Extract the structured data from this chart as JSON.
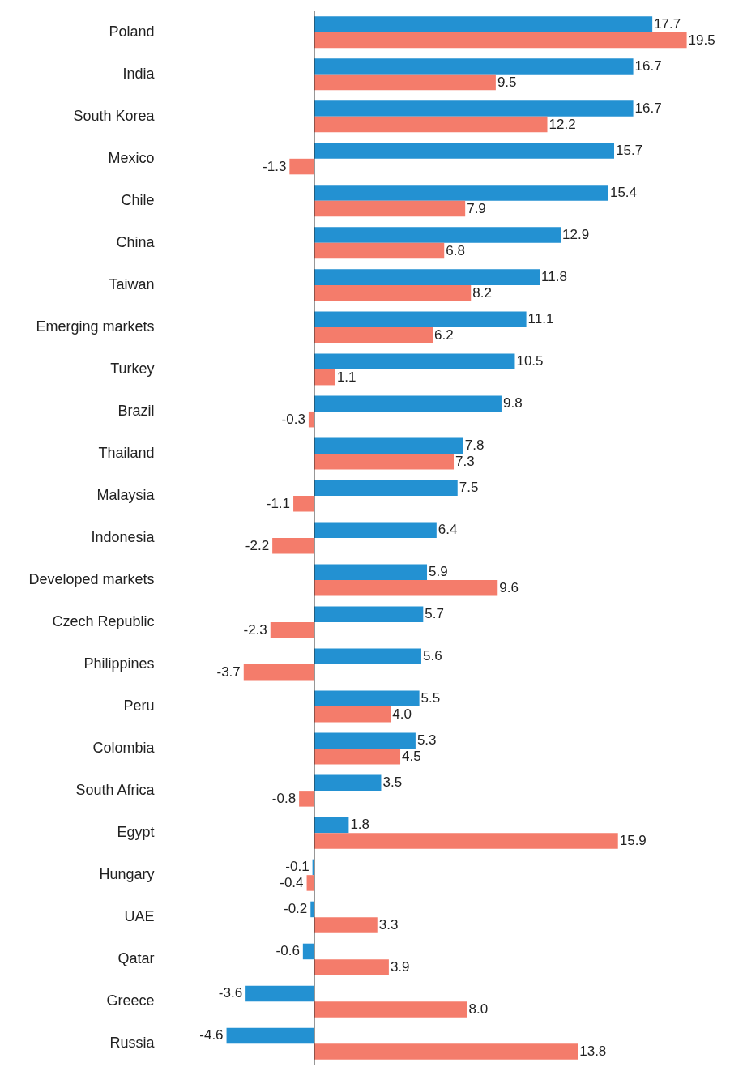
{
  "chart_data": {
    "type": "bar",
    "orientation": "horizontal",
    "categories": [
      "Poland",
      "India",
      "South Korea",
      "Mexico",
      "Chile",
      "China",
      "Taiwan",
      "Emerging markets",
      "Turkey",
      "Brazil",
      "Thailand",
      "Malaysia",
      "Indonesia",
      "Developed markets",
      "Czech Republic",
      "Philippines",
      "Peru",
      "Colombia",
      "South Africa",
      "Egypt",
      "Hungary",
      "UAE",
      "Qatar",
      "Greece",
      "Russia"
    ],
    "series": [
      {
        "color": "#2391d2",
        "values": [
          17.7,
          16.7,
          16.7,
          15.7,
          15.4,
          12.9,
          11.8,
          11.1,
          10.5,
          9.8,
          7.8,
          7.5,
          6.4,
          5.9,
          5.7,
          5.6,
          5.5,
          5.3,
          3.5,
          1.8,
          -0.1,
          -0.2,
          -0.6,
          -3.6,
          -4.6
        ],
        "value_labels": [
          "17.7",
          "16.7",
          "16.7",
          "15.7",
          "15.4",
          "12.9",
          "11.8",
          "11.1",
          "10.5",
          "9.8",
          "7.8",
          "7.5",
          "6.4",
          "5.9",
          "5.7",
          "5.6",
          "5.5",
          "5.3",
          "3.5",
          "1.8",
          "-0.1",
          "-0.2",
          "-0.6",
          "-3.6",
          "-4.6"
        ]
      },
      {
        "color": "#f47c6b",
        "values": [
          19.5,
          9.5,
          12.2,
          -1.3,
          7.9,
          6.8,
          8.2,
          6.2,
          1.1,
          -0.3,
          7.3,
          -1.1,
          -2.2,
          9.6,
          -2.3,
          -3.7,
          4.0,
          4.5,
          -0.8,
          15.9,
          -0.4,
          3.3,
          3.9,
          8.0,
          13.8
        ],
        "value_labels": [
          "19.5",
          "9.5",
          "12.2",
          "-1.3",
          "7.9",
          "6.8",
          "8.2",
          "6.2",
          "1.1",
          "-0.3",
          "7.3",
          "-1.1",
          "-2.2",
          "9.6",
          "-2.3",
          "-3.7",
          "4.0",
          "4.5",
          "-0.8",
          "15.9",
          "-0.4",
          "3.3",
          "3.9",
          "8.0",
          "13.8"
        ]
      }
    ]
  }
}
